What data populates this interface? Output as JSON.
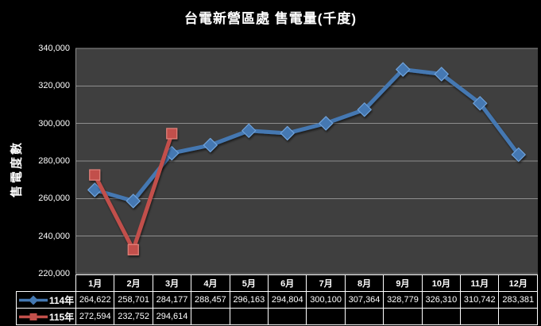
{
  "title": "台電新營區處 售電量(千度)",
  "y_axis": {
    "title": "售電度數",
    "ticks": [
      "340,000",
      "320,000",
      "300,000",
      "280,000",
      "260,000",
      "240,000",
      "220,000"
    ]
  },
  "table": {
    "months": [
      "1月",
      "2月",
      "3月",
      "4月",
      "5月",
      "6月",
      "7月",
      "8月",
      "9月",
      "10月",
      "11月",
      "12月"
    ],
    "rows": [
      {
        "label": "114年",
        "values": [
          "264,622",
          "258,701",
          "284,177",
          "288,457",
          "296,163",
          "294,804",
          "300,100",
          "307,364",
          "328,779",
          "326,310",
          "310,742",
          "283,381"
        ]
      },
      {
        "label": "115年",
        "values": [
          "272,594",
          "232,752",
          "294,614",
          "",
          "",
          "",
          "",
          "",
          "",
          "",
          "",
          ""
        ]
      }
    ]
  },
  "colors": {
    "page_bg": "#000000",
    "plot_bg": "#3F3F3F",
    "gridline": "#8E8E8E",
    "table_border": "#FFFFFF",
    "text": "#FFFFFF",
    "series_blue": "#4478B2",
    "series_red": "#C2504B"
  },
  "chart_data": {
    "type": "line",
    "title": "台電新營區處 售電量(千度)",
    "xlabel": "",
    "ylabel": "售電度數",
    "categories": [
      "1月",
      "2月",
      "3月",
      "4月",
      "5月",
      "6月",
      "7月",
      "8月",
      "9月",
      "10月",
      "11月",
      "12月"
    ],
    "series": [
      {
        "name": "114年",
        "color": "#4478B2",
        "marker": "diamond",
        "marker_stroke": "#6FA3DB",
        "values": [
          264622,
          258701,
          284177,
          288457,
          296163,
          294804,
          300100,
          307364,
          328779,
          326310,
          310742,
          283381
        ]
      },
      {
        "name": "115年",
        "color": "#C2504B",
        "marker": "square",
        "marker_stroke": "#E2837C",
        "values": [
          272594,
          232752,
          294614
        ]
      }
    ],
    "ylim": [
      220000,
      340000
    ],
    "ytick_step": 20000,
    "grid": "horizontal-only",
    "legend_position": "table-left",
    "plot_bg": "#3F3F3F",
    "page_bg": "#000000",
    "gridline_color": "#8E8E8E"
  }
}
